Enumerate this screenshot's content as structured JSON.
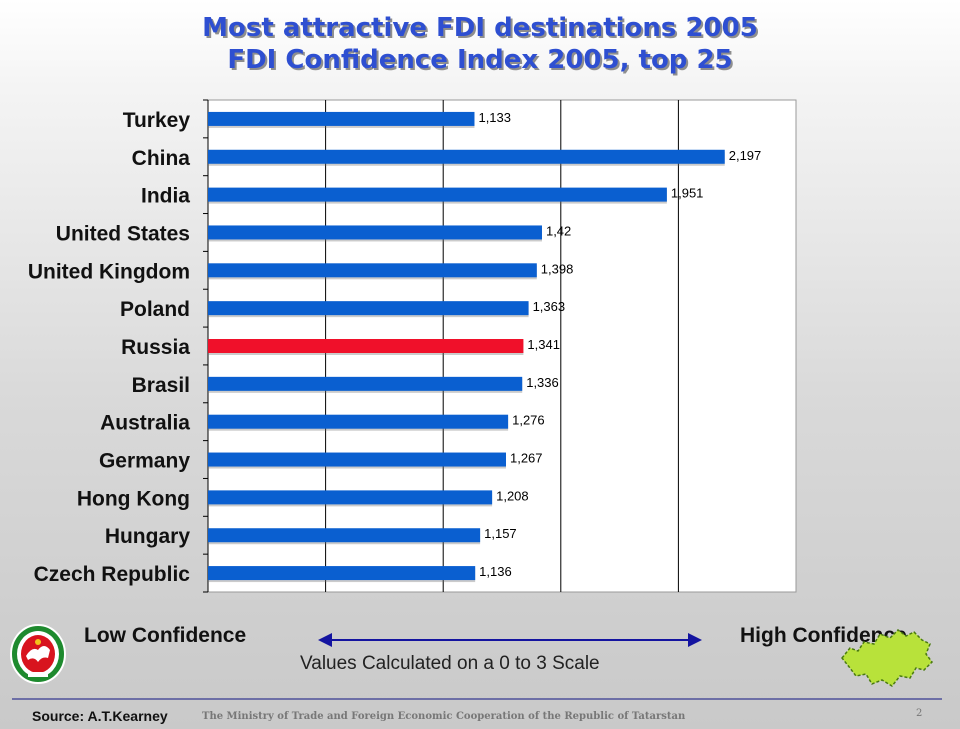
{
  "header": {
    "title_line1": "Most attractive FDI destinations 2005",
    "title_line2": "FDI Confidence Index 2005, top 25"
  },
  "chart_data": {
    "type": "bar",
    "orientation": "horizontal",
    "categories": [
      "Turkey",
      "China",
      "India",
      "United States",
      "United Kingdom",
      "Poland",
      "Russia",
      "Brasil",
      "Australia",
      "Germany",
      "Hong Kong",
      "Hungary",
      "Czech Republic"
    ],
    "values": [
      1.133,
      2.197,
      1.951,
      1.42,
      1.398,
      1.363,
      1.341,
      1.336,
      1.276,
      1.267,
      1.208,
      1.157,
      1.136
    ],
    "value_labels": [
      "1,133",
      "2,197",
      "1,951",
      "1,42",
      "1,398",
      "1,363",
      "1,341",
      "1,336",
      "1,276",
      "1,267",
      "1,208",
      "1,157",
      "1,136"
    ],
    "highlight_category": "Russia",
    "colors": {
      "bar": "#0a5fd0",
      "highlight": "#f0102a"
    },
    "xlim": [
      0,
      2.5
    ],
    "grid": true
  },
  "legend": {
    "low_label": "Low Confidence",
    "high_label": "High Confidence",
    "scale_note": "Values Calculated on a 0 to 3 Scale",
    "arrow_color": "#1414a0"
  },
  "footer": {
    "source": "Source: A.T.Kearney",
    "ministry": "The Ministry of Trade and Foreign Economic Cooperation of the Republic of Tatarstan",
    "page_number": "2"
  }
}
